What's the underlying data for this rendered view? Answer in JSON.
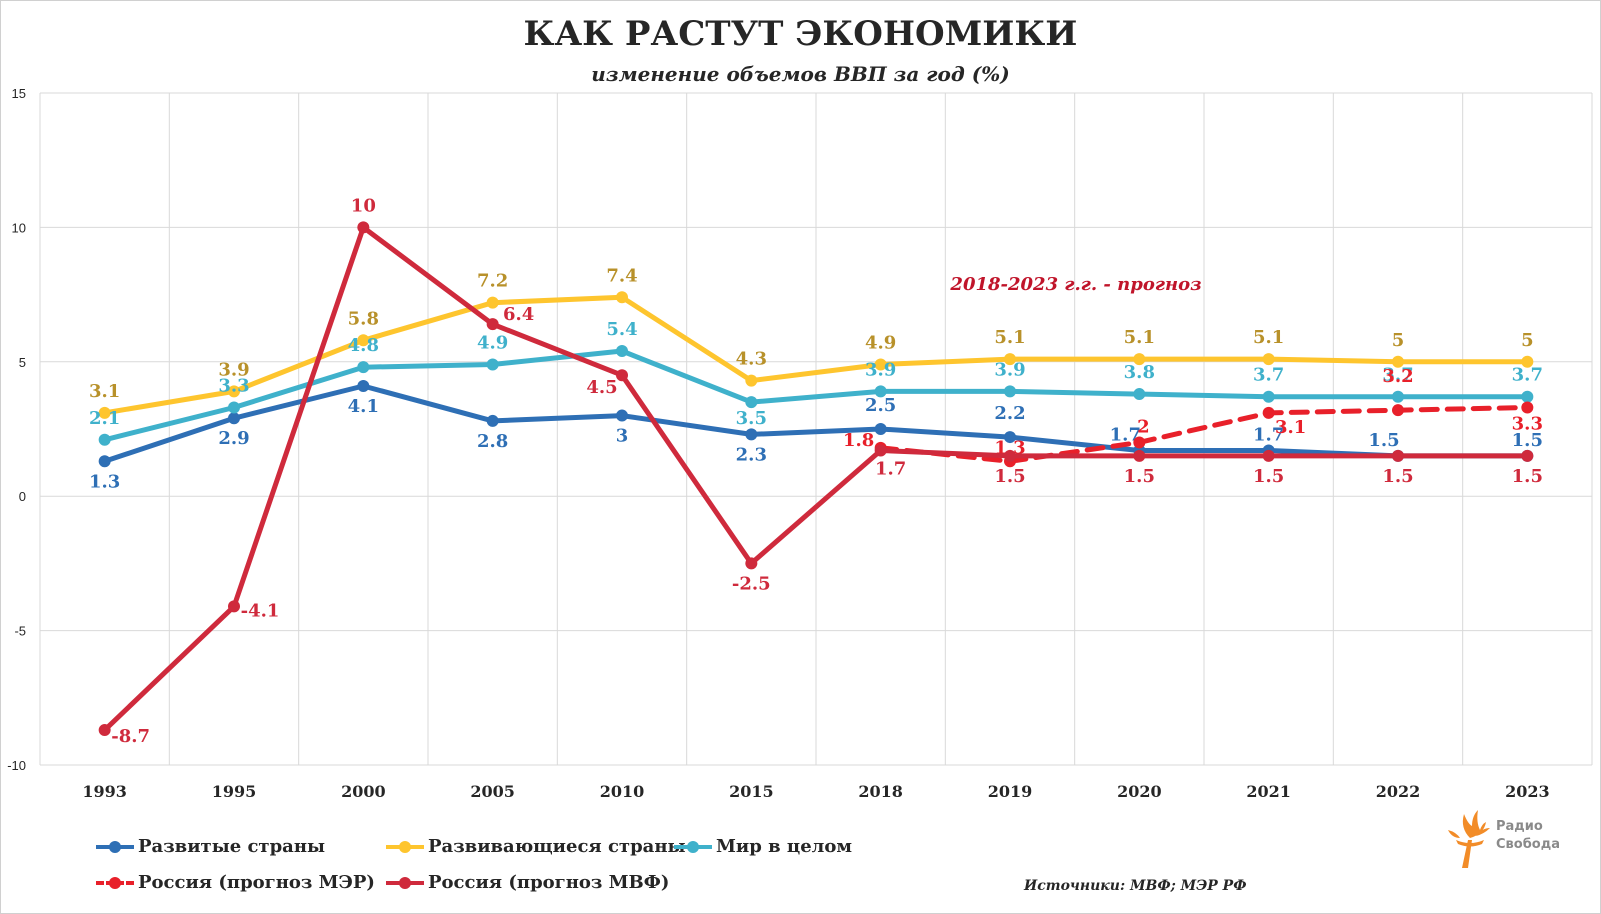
{
  "title": "КАК РАСТУТ ЭКОНОМИКИ",
  "subtitle": "изменение объемов ВВП за год (%)",
  "annotation": "2018-2023 г.г. - прогноз",
  "sources": "Источники: МВФ; МЭР РФ",
  "logo": {
    "line1": "Радио",
    "line2": "Свобода",
    "icon": "torch-icon",
    "color": "#f28c28"
  },
  "chart_data": {
    "type": "line",
    "categories": [
      "1993",
      "1995",
      "2000",
      "2005",
      "2010",
      "2015",
      "2018",
      "2019",
      "2020",
      "2021",
      "2022",
      "2023"
    ],
    "ylim": [
      -10,
      15
    ],
    "yticks": [
      -10,
      -5,
      0,
      5,
      10,
      15
    ],
    "grid": true,
    "legend_position": "bottom",
    "series": [
      {
        "name": "Развитые страны",
        "color": "#2e6fb5",
        "label_color": "#2e6fb5",
        "dashed": false,
        "values": [
          1.3,
          2.9,
          4.1,
          2.8,
          3,
          2.3,
          2.5,
          2.2,
          1.7,
          1.7,
          1.5,
          1.5
        ]
      },
      {
        "name": "Развивающиеся страны",
        "color": "#fec52e",
        "label_color": "#b8912a",
        "dashed": false,
        "values": [
          3.1,
          3.9,
          5.8,
          7.2,
          7.4,
          4.3,
          4.9,
          5.1,
          5.1,
          5.1,
          5,
          5
        ]
      },
      {
        "name": "Мир в целом",
        "color": "#3fb1cb",
        "label_color": "#3fb1cb",
        "dashed": false,
        "values": [
          2.1,
          3.3,
          4.8,
          4.9,
          5.4,
          3.5,
          3.9,
          3.9,
          3.8,
          3.7,
          3.7,
          3.7
        ]
      },
      {
        "name": "Россия (прогноз МЭР)",
        "color": "#e8202a",
        "label_color": "#e8202a",
        "dashed": true,
        "values": [
          null,
          null,
          null,
          null,
          null,
          null,
          1.8,
          1.3,
          2,
          3.1,
          3.2,
          3.3
        ]
      },
      {
        "name": "Россия (прогноз МВФ)",
        "color": "#cf2a3c",
        "label_color": "#cf2a3c",
        "dashed": false,
        "values": [
          -8.7,
          -4.1,
          10,
          6.4,
          4.5,
          -2.5,
          1.7,
          1.5,
          1.5,
          1.5,
          1.5,
          1.5
        ]
      }
    ]
  }
}
